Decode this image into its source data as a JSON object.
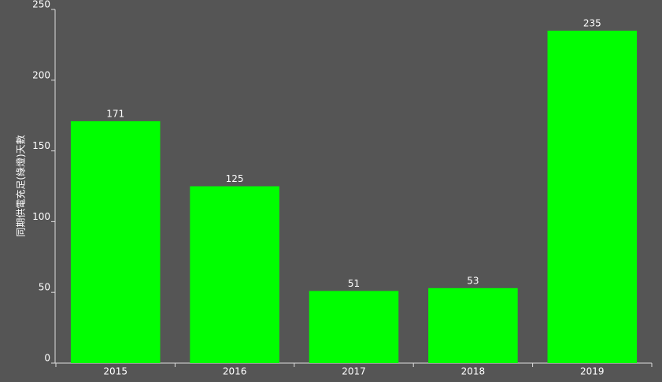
{
  "chart_data": {
    "type": "bar",
    "y_label": "同期供電充足(綠燈)天數",
    "categories": [
      "2015",
      "2016",
      "2017",
      "2018",
      "2019"
    ],
    "values": [
      171,
      125,
      51,
      53,
      235
    ],
    "color": "#00ff00",
    "ylim": [
      0,
      250
    ],
    "yticks": [
      0,
      50,
      100,
      150,
      200,
      250
    ],
    "grid": false
  }
}
